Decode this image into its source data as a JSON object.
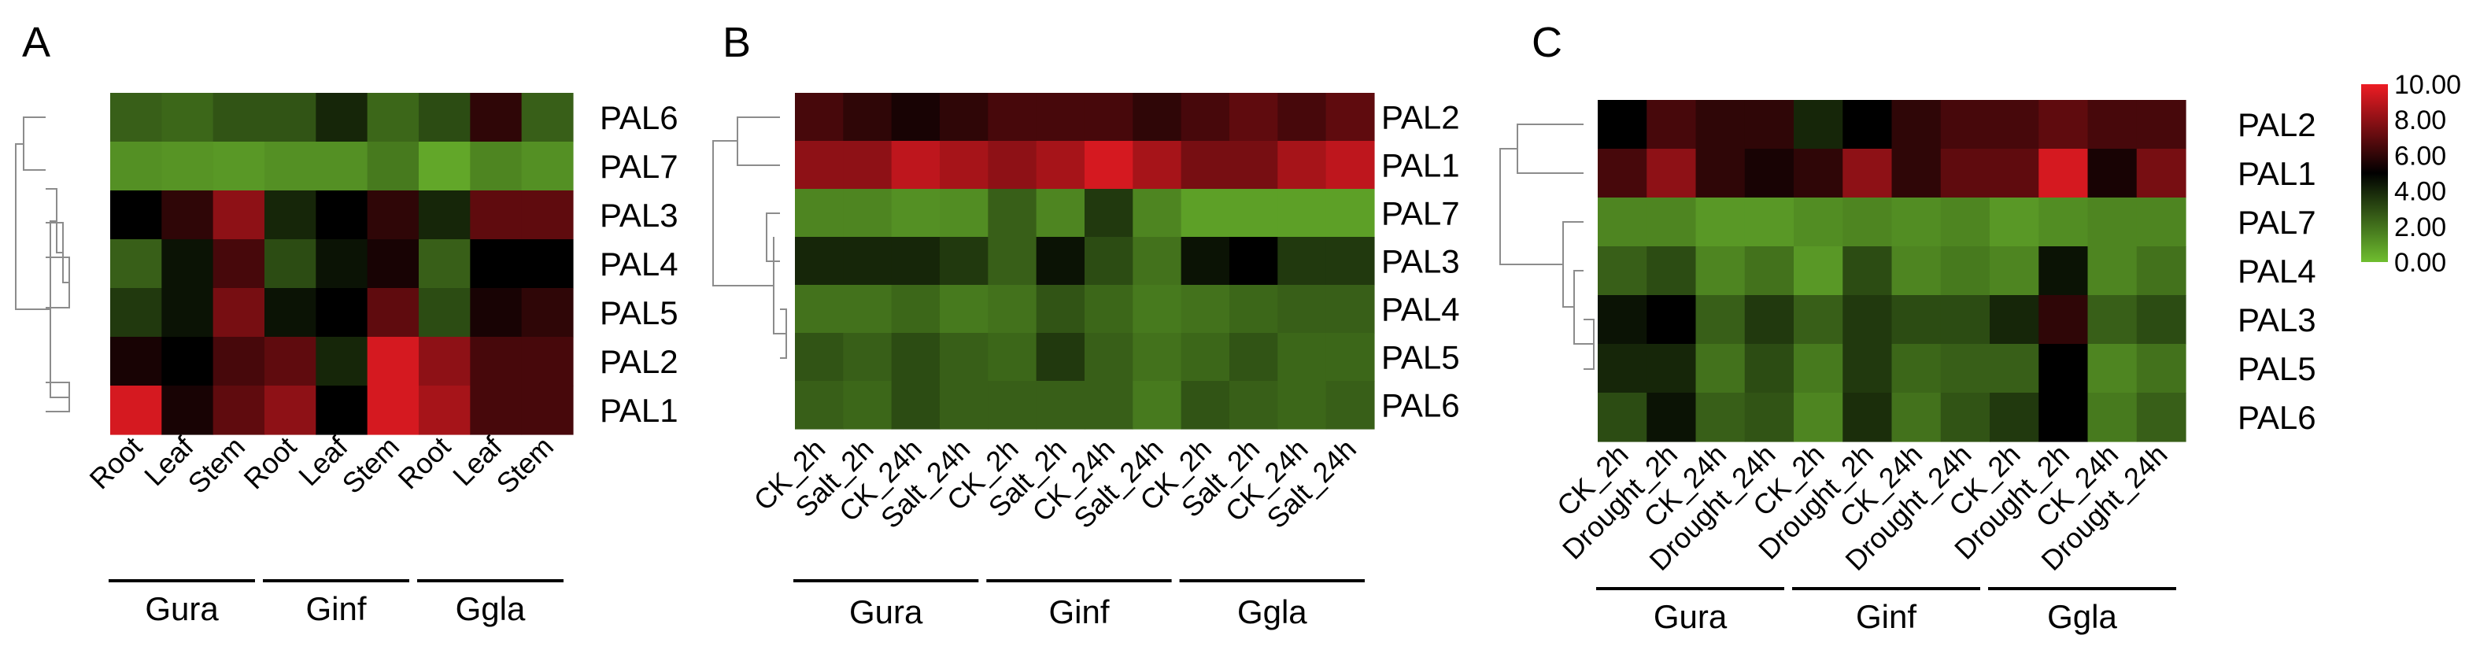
{
  "chart_data": [
    {
      "type": "heatmap",
      "panel": "A",
      "rows": [
        "PAL6",
        "PAL7",
        "PAL3",
        "PAL4",
        "PAL5",
        "PAL2",
        "PAL1"
      ],
      "columns": [
        "Root",
        "Leaf",
        "Stem",
        "Root",
        "Leaf",
        "Stem",
        "Root",
        "Leaf",
        "Stem"
      ],
      "groups": [
        {
          "name": "Gura",
          "span": [
            0,
            2
          ]
        },
        {
          "name": "Ginf",
          "span": [
            3,
            5
          ]
        },
        {
          "name": "Ggla",
          "span": [
            6,
            8
          ]
        }
      ],
      "values": [
        [
          2.5,
          2.3,
          2.8,
          2.8,
          4.0,
          2.3,
          3.0,
          6.0,
          2.5
        ],
        [
          1.2,
          1.1,
          1.0,
          1.2,
          1.2,
          1.8,
          0.6,
          1.5,
          1.2
        ],
        [
          5.0,
          6.0,
          8.0,
          4.0,
          5.0,
          6.0,
          4.0,
          7.0,
          7.0
        ],
        [
          2.5,
          4.5,
          6.5,
          3.0,
          4.5,
          5.5,
          2.5,
          5.0,
          5.0
        ],
        [
          3.5,
          4.5,
          7.5,
          4.5,
          5.0,
          7.0,
          3.0,
          5.5,
          6.0
        ],
        [
          5.5,
          5.0,
          6.5,
          7.0,
          4.0,
          9.5,
          8.0,
          6.5,
          6.5
        ],
        [
          9.5,
          5.5,
          7.0,
          8.0,
          5.0,
          9.5,
          8.5,
          6.5,
          6.5
        ]
      ]
    },
    {
      "type": "heatmap",
      "panel": "B",
      "rows": [
        "PAL2",
        "PAL1",
        "PAL7",
        "PAL3",
        "PAL4",
        "PAL5",
        "PAL6"
      ],
      "columns": [
        "CK_2h",
        "Salt_2h",
        "CK_24h",
        "Salt_24h",
        "CK_2h",
        "Salt_2h",
        "CK_24h",
        "Salt_24h",
        "CK_2h",
        "Salt_2h",
        "CK_24h",
        "Salt_24h"
      ],
      "groups": [
        {
          "name": "Gura",
          "span": [
            0,
            3
          ]
        },
        {
          "name": "Ginf",
          "span": [
            4,
            7
          ]
        },
        {
          "name": "Ggla",
          "span": [
            8,
            11
          ]
        }
      ],
      "values": [
        [
          6.5,
          6.0,
          5.5,
          6.0,
          6.5,
          6.5,
          6.5,
          6.0,
          6.5,
          7.0,
          6.5,
          7.0
        ],
        [
          8.0,
          8.0,
          9.0,
          8.5,
          8.0,
          8.5,
          9.5,
          8.5,
          7.5,
          7.5,
          8.5,
          9.0
        ],
        [
          1.5,
          1.5,
          1.2,
          1.3,
          2.5,
          1.5,
          3.5,
          1.5,
          0.8,
          0.8,
          0.8,
          0.8
        ],
        [
          4.0,
          4.0,
          4.0,
          3.5,
          2.5,
          4.5,
          3.0,
          2.0,
          4.5,
          5.0,
          3.5,
          3.5
        ],
        [
          2.0,
          2.0,
          2.3,
          1.8,
          2.0,
          2.8,
          2.3,
          1.8,
          2.0,
          2.3,
          2.5,
          2.5
        ],
        [
          2.8,
          2.5,
          3.0,
          2.5,
          2.3,
          3.5,
          2.5,
          2.0,
          2.3,
          2.8,
          2.3,
          2.3
        ],
        [
          2.5,
          2.3,
          3.0,
          2.5,
          2.5,
          2.5,
          2.5,
          1.8,
          2.8,
          2.5,
          2.3,
          2.5
        ]
      ]
    },
    {
      "type": "heatmap",
      "panel": "C",
      "rows": [
        "PAL2",
        "PAL1",
        "PAL7",
        "PAL4",
        "PAL3",
        "PAL5",
        "PAL6"
      ],
      "columns": [
        "CK_2h",
        "Drought_2h",
        "CK_24h",
        "Drought_24h",
        "CK_2h",
        "Drought_2h",
        "CK_24h",
        "Drought_24h",
        "CK_2h",
        "Drought_2h",
        "CK_24h",
        "Drought_24h"
      ],
      "groups": [
        {
          "name": "Gura",
          "span": [
            0,
            3
          ]
        },
        {
          "name": "Ginf",
          "span": [
            4,
            7
          ]
        },
        {
          "name": "Ggla",
          "span": [
            8,
            11
          ]
        }
      ],
      "values": [
        [
          5.0,
          6.5,
          6.0,
          6.0,
          4.0,
          5.0,
          6.0,
          6.5,
          6.5,
          7.0,
          6.5,
          6.5
        ],
        [
          6.5,
          8.0,
          6.0,
          5.5,
          6.0,
          8.0,
          6.0,
          7.0,
          7.0,
          9.5,
          5.5,
          7.5
        ],
        [
          1.5,
          1.5,
          1.0,
          1.0,
          1.3,
          1.5,
          1.3,
          1.5,
          1.0,
          1.3,
          1.5,
          1.5
        ],
        [
          2.5,
          3.0,
          1.5,
          2.0,
          1.0,
          3.0,
          1.5,
          1.8,
          1.5,
          4.5,
          1.5,
          2.0
        ],
        [
          4.5,
          5.0,
          2.5,
          3.5,
          2.5,
          3.5,
          3.0,
          3.0,
          4.0,
          6.0,
          2.5,
          3.0
        ],
        [
          4.0,
          4.0,
          2.0,
          3.0,
          1.8,
          3.5,
          2.3,
          2.5,
          2.5,
          5.0,
          1.5,
          2.0
        ],
        [
          3.0,
          4.5,
          2.5,
          2.8,
          1.5,
          3.8,
          2.0,
          2.8,
          3.5,
          5.0,
          1.8,
          2.5
        ]
      ]
    }
  ],
  "panel_labels": {
    "a": "A",
    "b": "B",
    "c": "C"
  },
  "legend": {
    "min": 0,
    "max": 10,
    "colors": {
      "low": "#6fbe2f",
      "mid": "#000000",
      "high": "#ed1c24"
    },
    "tick_labels": [
      "10.00",
      "8.00",
      "6.00",
      "4.00",
      "2.00",
      "0.00"
    ]
  }
}
